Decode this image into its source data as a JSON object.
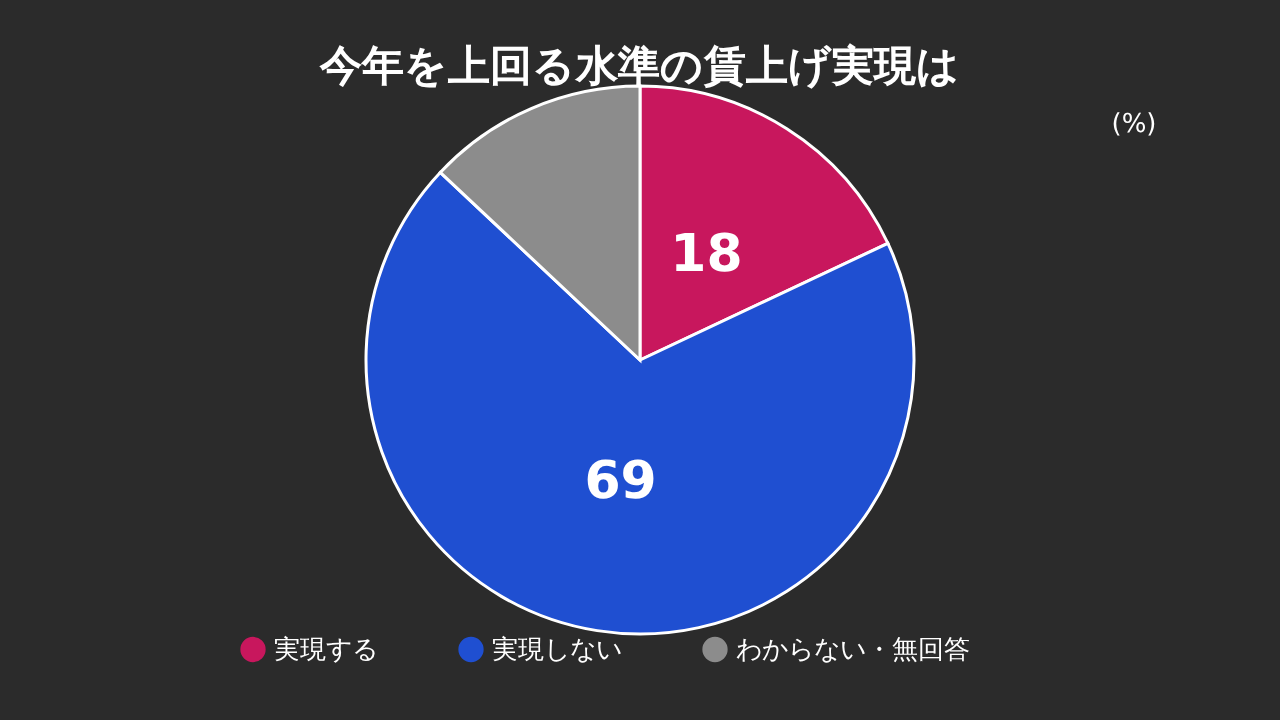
{
  "chart_data": {
    "type": "pie",
    "title": "今年を上回る水準の賃上げ実現は",
    "categories": [
      "実現する",
      "実現しない",
      "わからない・無回答"
    ],
    "values": [
      18,
      69,
      13
    ],
    "colors": [
      "#c8175d",
      "#1f4fd1",
      "#8c8c8c"
    ],
    "value_labels": [
      "18",
      "69",
      null
    ],
    "annotations": [
      "(%)"
    ],
    "legend": "bottom"
  }
}
